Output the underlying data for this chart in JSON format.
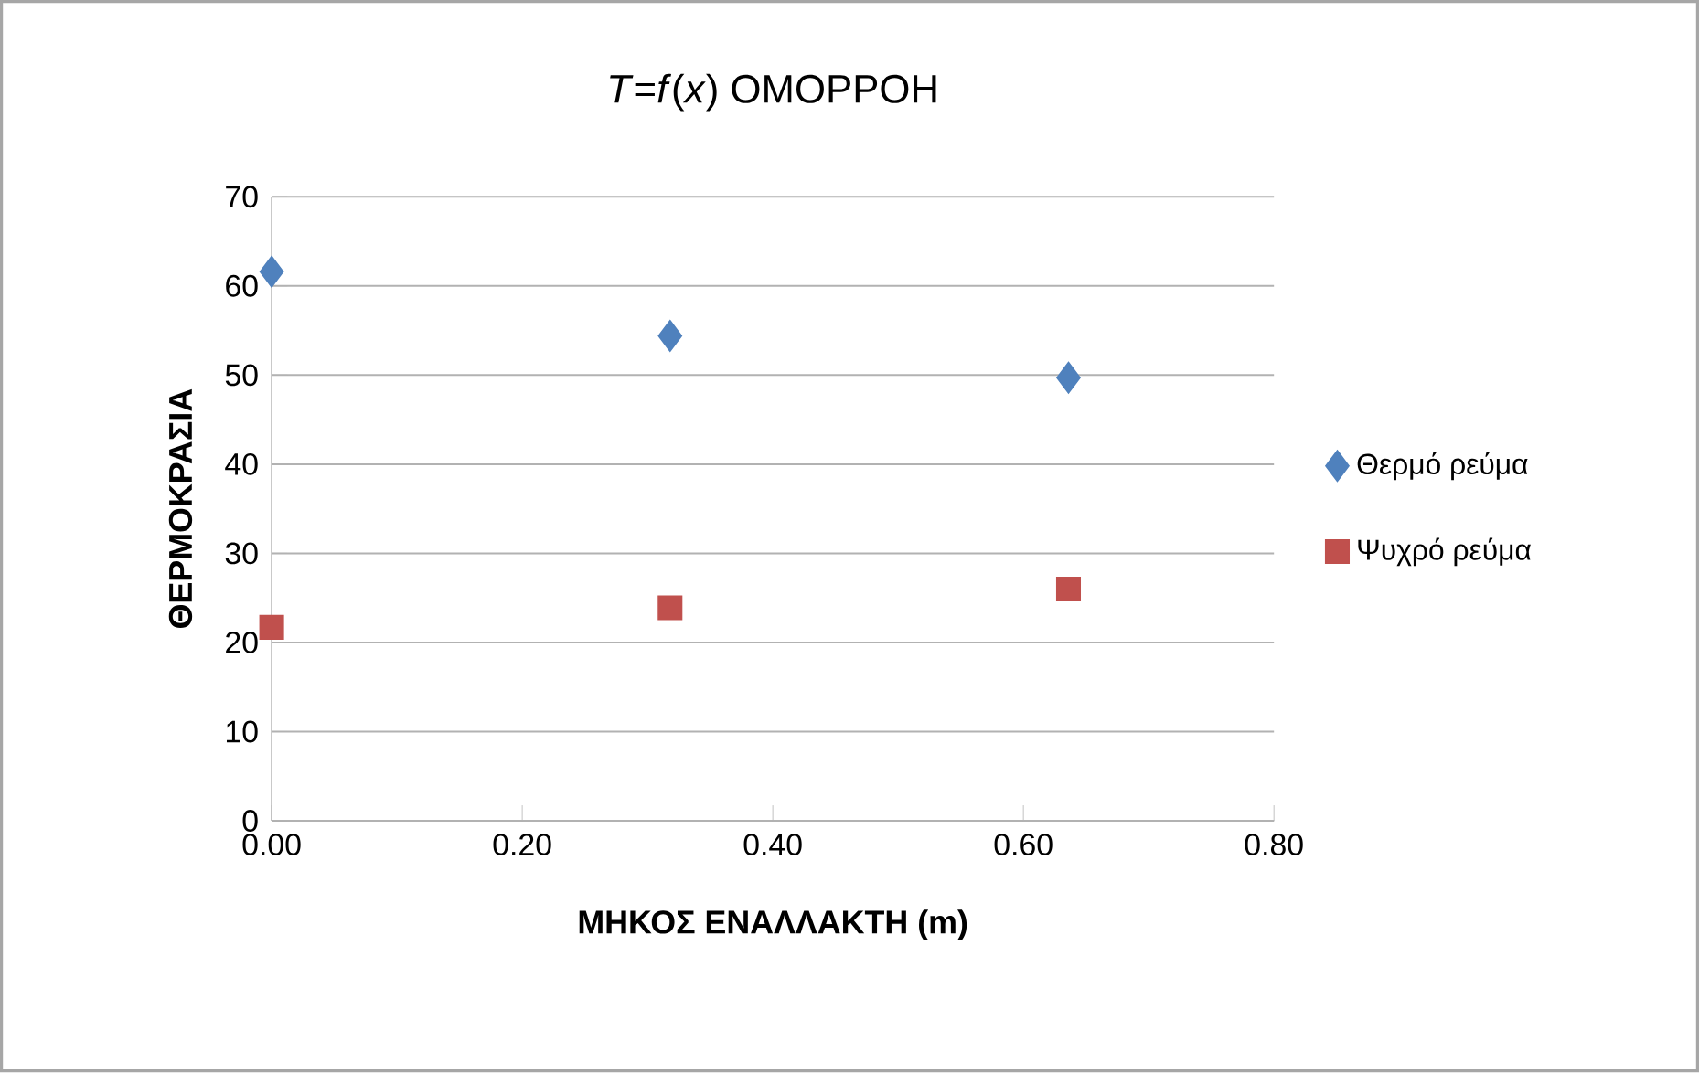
{
  "chart_data": {
    "type": "scatter",
    "title": "*T*=*f*(*x*)  ΟΜΟΡΡΟΗ",
    "xlabel": "ΜΗΚΟΣ ΕΝΑΛΛΑΚΤΗ (m)",
    "ylabel": "ΘΕΡΜΟΚΡΑΣΙΑ",
    "x": [
      0,
      0.318,
      0.636
    ],
    "series": [
      {
        "name": "Θερμό ρεύμα",
        "color": "#4f81bd",
        "marker": "diamond",
        "values": [
          61.6,
          54.4,
          49.7
        ]
      },
      {
        "name": "Ψυχρό ρεύμα",
        "color": "#c0504d",
        "marker": "square",
        "values": [
          21.7,
          23.9,
          26.0
        ]
      }
    ],
    "xlim": [
      0,
      0.8
    ],
    "xticks": [
      {
        "value": 0,
        "label": "0.00"
      },
      {
        "value": 0.2,
        "label": "0.20"
      },
      {
        "value": 0.4,
        "label": "0.40"
      },
      {
        "value": 0.6,
        "label": "0.60"
      },
      {
        "value": 0.8,
        "label": "0.80"
      }
    ],
    "ylim": [
      0,
      70
    ],
    "yticks": [
      0,
      10,
      20,
      30,
      40,
      50,
      60,
      70
    ],
    "grid": "y",
    "legend": "right"
  }
}
